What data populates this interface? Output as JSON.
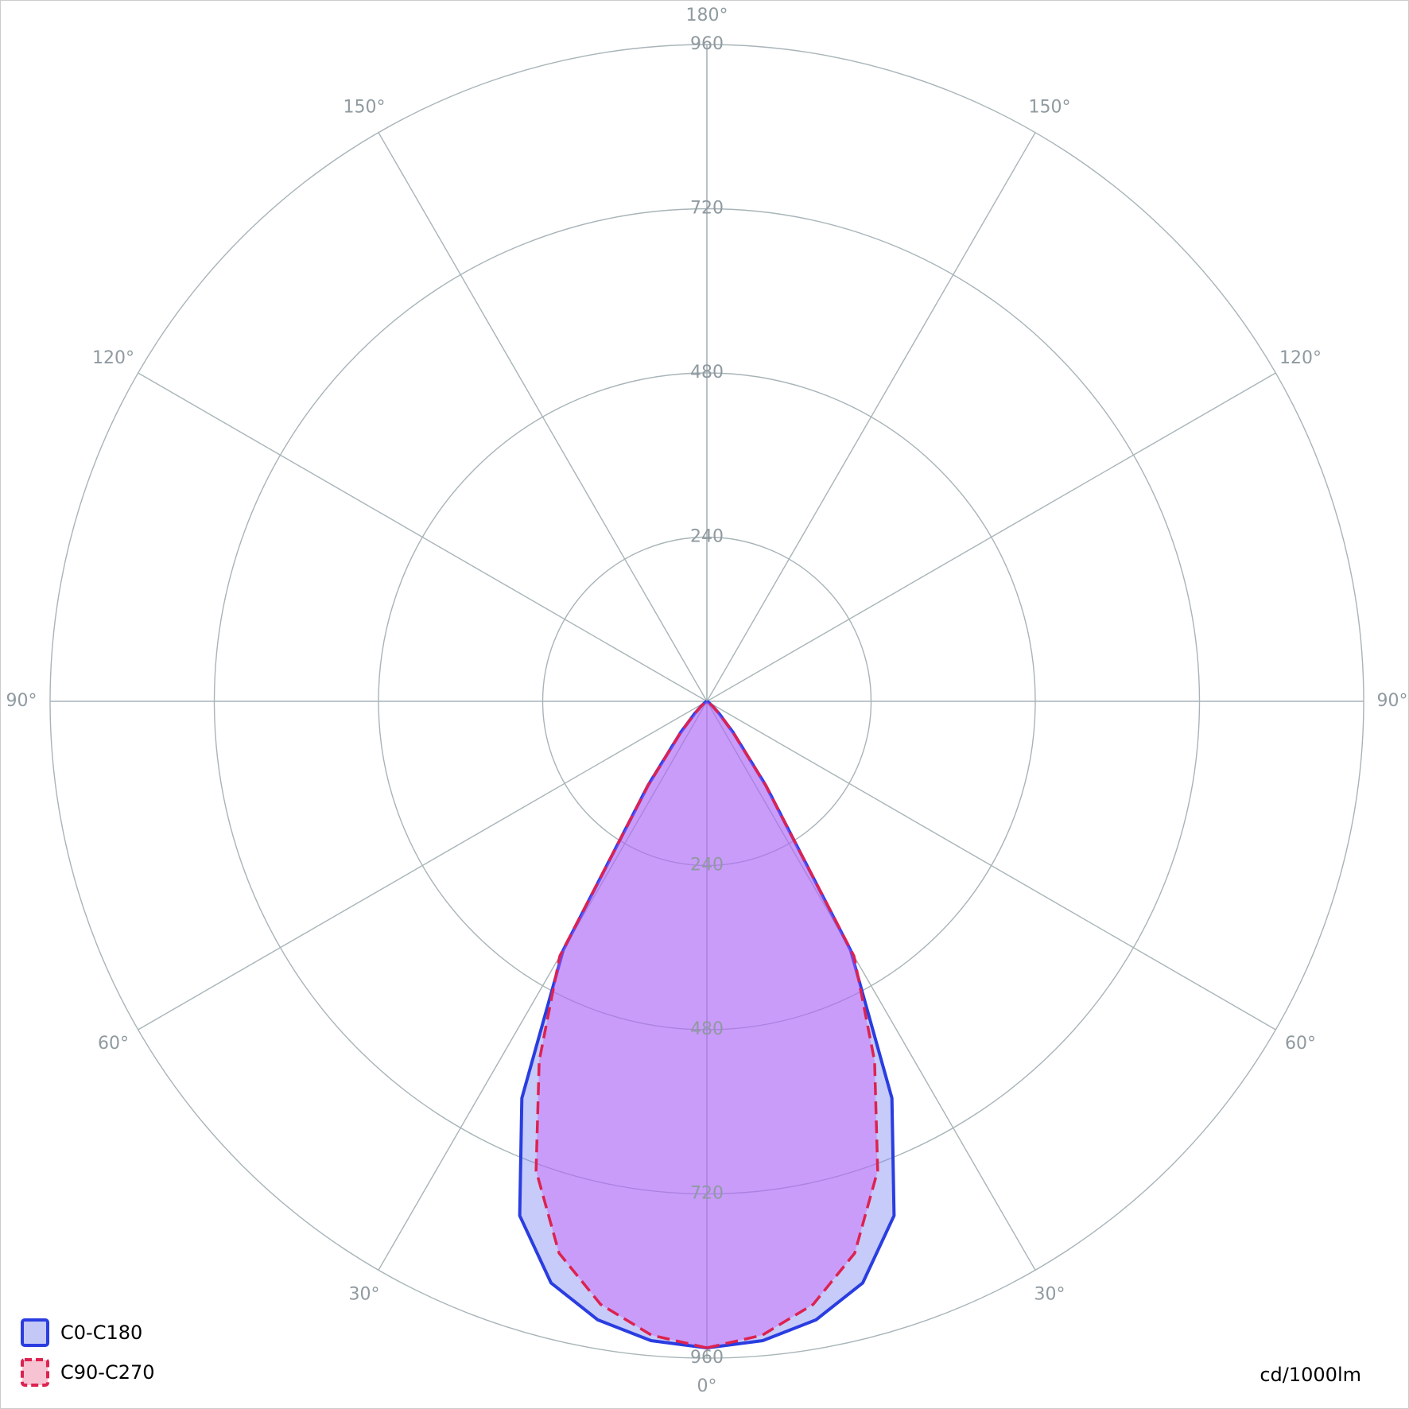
{
  "chart_data": {
    "type": "polar",
    "angles": [
      0,
      5,
      10,
      15,
      20,
      25,
      30,
      35,
      40,
      45,
      50,
      55,
      60,
      65,
      70,
      75,
      80,
      85,
      90
    ],
    "series": [
      {
        "name": "C0-C180",
        "color": "#2a3de0",
        "values": [
          945,
          938,
          918,
          880,
          800,
          640,
          420,
          150,
          60,
          25,
          10,
          5,
          2,
          0,
          0,
          0,
          0,
          0,
          0
        ]
      },
      {
        "name": "C90-C270",
        "color": "#dd2250",
        "values": [
          945,
          930,
          895,
          835,
          730,
          580,
          430,
          150,
          60,
          25,
          10,
          5,
          2,
          0,
          0,
          0,
          0,
          0,
          0
        ]
      }
    ],
    "rlim": [
      0,
      960
    ],
    "rticks": [
      240,
      480,
      720,
      960
    ],
    "angle_ticks": [
      {
        "value": 0,
        "label": "0°"
      },
      {
        "value": 30,
        "label": "30°"
      },
      {
        "value": 60,
        "label": "60°"
      },
      {
        "value": 90,
        "label": "90°"
      },
      {
        "value": 120,
        "label": "120°"
      },
      {
        "value": 150,
        "label": "150°"
      },
      {
        "value": 180,
        "label": "180°"
      }
    ],
    "unit_label": "cd/1000lm",
    "grid": true
  }
}
